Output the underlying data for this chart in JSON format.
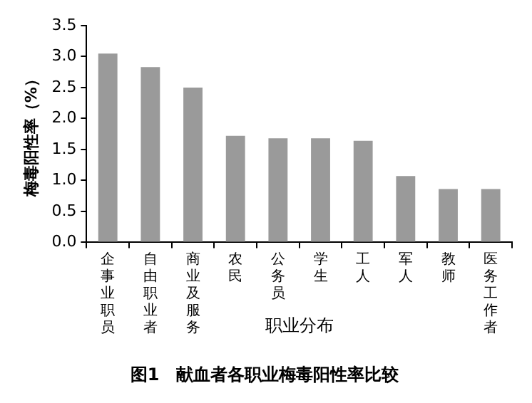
{
  "chart_data": {
    "type": "bar",
    "title": "图1　献血者各职业梅毒阳性率比较",
    "xlabel": "职业分布",
    "ylabel": "梅毒阳性率（%）",
    "categories": [
      "企事业职员",
      "自由职业者",
      "商业及服务人员",
      "农民",
      "公务员",
      "学生",
      "工人",
      "军人",
      "教师",
      "医务工作者"
    ],
    "values": [
      3.05,
      2.83,
      2.5,
      1.72,
      1.68,
      1.68,
      1.64,
      1.07,
      0.86,
      0.86
    ],
    "color": "#9a9a9a",
    "ylim": [
      0,
      3.5
    ],
    "yticks": [
      {
        "value": 0,
        "label": "0.0"
      },
      0.5,
      {
        "value": 1,
        "label": "1.0"
      },
      1.5,
      {
        "value": 2,
        "label": "2.0"
      },
      2.5,
      {
        "value": 3,
        "label": "3.0"
      },
      3.5
    ],
    "grid": false,
    "legend": false
  }
}
